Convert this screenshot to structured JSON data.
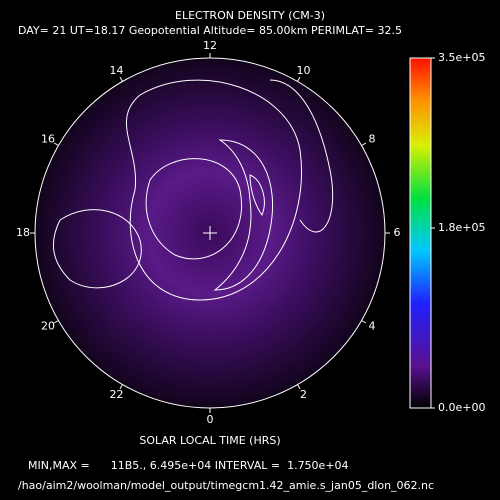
{
  "chart_data": {
    "type": "polar-contour",
    "title": "ELECTRON DENSITY (CM-3)",
    "subtitle": "DAY= 21 UT=18.17 Geopotential Altitude= 85.00km PERIMLAT= 32.5",
    "xlabel": "SOLAR LOCAL TIME (HRS)",
    "hour_ticks": [
      12,
      14,
      16,
      18,
      20,
      22,
      0,
      2,
      4,
      6,
      8,
      10
    ],
    "colorbar_lim": [
      0,
      350000
    ],
    "colorbar_ticks": [
      {
        "value": 0,
        "label": "0.0e+00"
      },
      {
        "value": 180000,
        "label": "1.8e+05"
      },
      {
        "value": 350000,
        "label": "3.5e+05"
      }
    ],
    "footer": "MIN,MAX =      11B5., 6.495e+04 INTERVAL =  1.750e+04",
    "source": "/hao/aim2/woolman/model_output/timegcm1.42_amie.s_jan05_dlon_062.nc"
  }
}
